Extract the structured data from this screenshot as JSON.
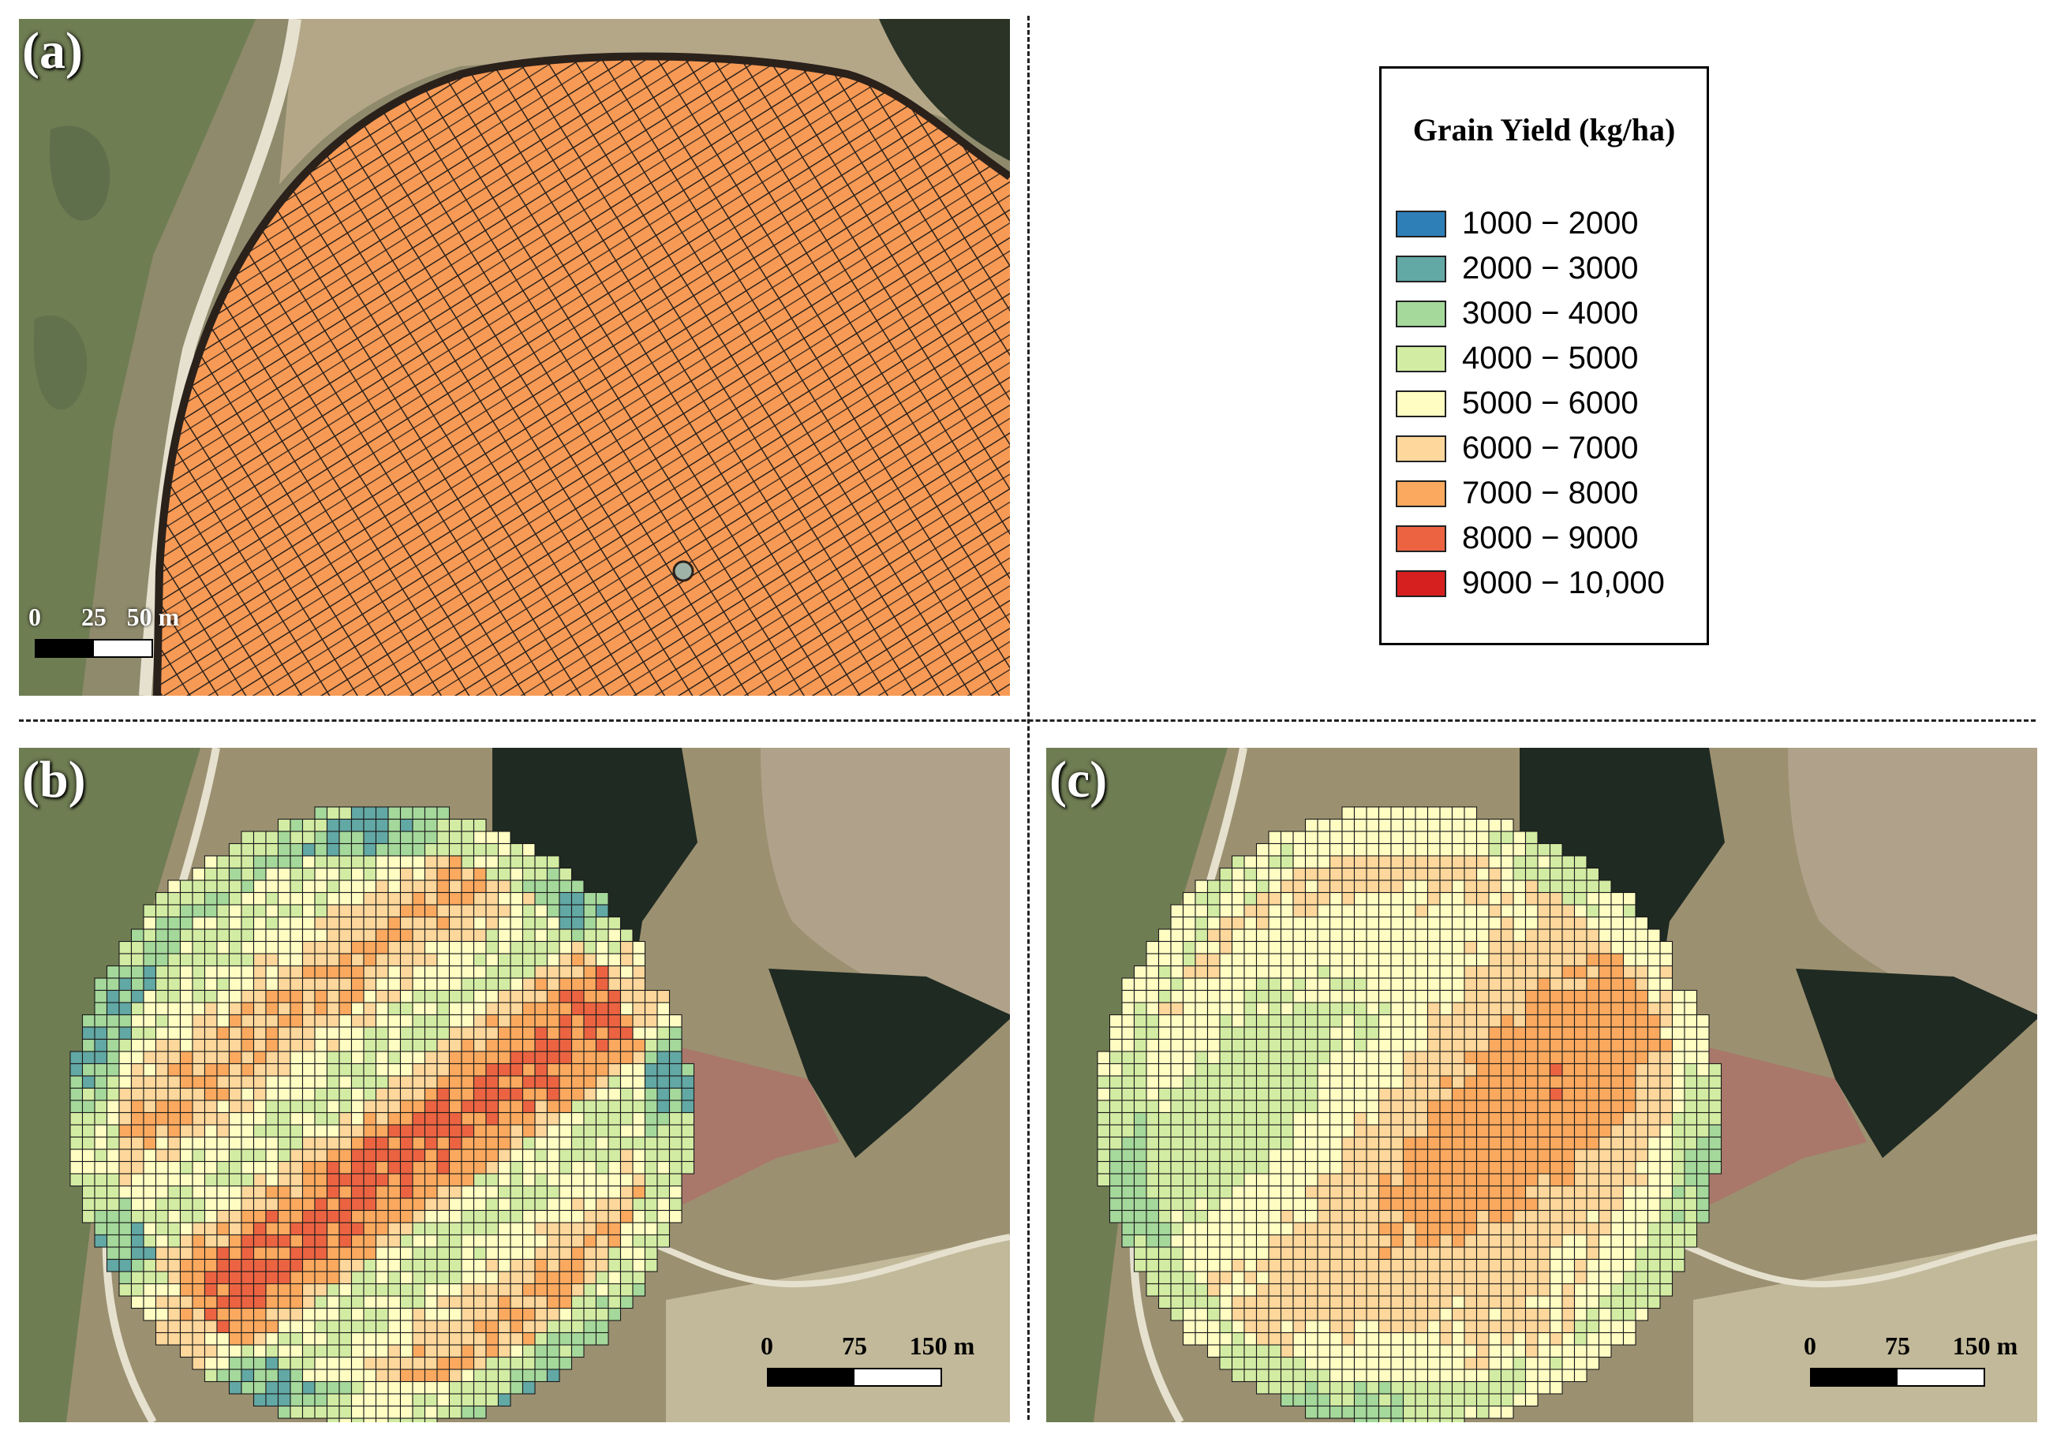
{
  "panels": {
    "a": {
      "label": "(a)",
      "scale_ticks": [
        "0",
        "25",
        "50 m"
      ]
    },
    "b": {
      "label": "(b)",
      "scale_ticks": [
        "0",
        "75",
        "150 m"
      ]
    },
    "c": {
      "label": "(c)",
      "scale_ticks": [
        "0",
        "75",
        "150 m"
      ]
    }
  },
  "legend": {
    "title": "Grain Yield (kg/ha)",
    "items": [
      {
        "label": "1000 − 2000",
        "color": "#2e7fb8"
      },
      {
        "label": "2000 − 3000",
        "color": "#62a8a5"
      },
      {
        "label": "3000 − 4000",
        "color": "#a5d89b"
      },
      {
        "label": "4000 − 5000",
        "color": "#d3eca3"
      },
      {
        "label": "5000 − 6000",
        "color": "#fffdc2"
      },
      {
        "label": "6000 − 7000",
        "color": "#fdd79b"
      },
      {
        "label": "7000 − 8000",
        "color": "#fba95f"
      },
      {
        "label": "8000 − 9000",
        "color": "#ec6342"
      },
      {
        "label": "9000 − 10,000",
        "color": "#d61f1f"
      }
    ]
  },
  "colors": {
    "point_fill": "#f79a55",
    "point_stroke": "#2b211b",
    "grid_stroke": "#1a1a1a",
    "terrain": "#9b9070",
    "field_green": "#6f7d53",
    "road": "#e6e1cf",
    "trees": "#1f2a22",
    "plowed_field": "#b0a28a",
    "vineyard": "#c2b99a"
  },
  "icons": [
    "scale-bar-icon"
  ]
}
